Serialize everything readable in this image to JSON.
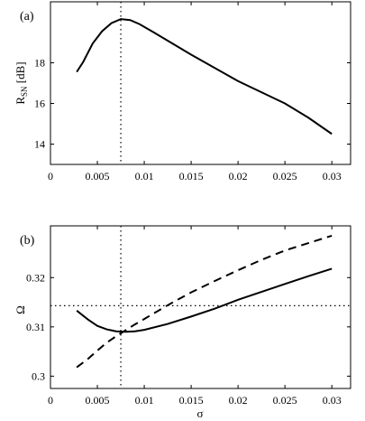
{
  "chart_data": [
    {
      "panel_label": "(a)",
      "type": "line",
      "ylabel": {
        "main": "R",
        "sub": "SN",
        "unit": " [dB]"
      },
      "xlim": [
        0,
        0.032
      ],
      "ylim": [
        13,
        21
      ],
      "xticks": [
        0,
        0.005,
        0.01,
        0.015,
        0.02,
        0.025,
        0.03
      ],
      "xtick_labels": [
        "0",
        "0.005",
        "0.01",
        "0.015",
        "0.02",
        "0.025",
        "0.03"
      ],
      "yticks": [
        14,
        16,
        18
      ],
      "ytick_labels": [
        "14",
        "16",
        "18"
      ],
      "vertical_ref": 0.0075,
      "series": [
        {
          "style": "solid",
          "x": [
            0.0028,
            0.0035,
            0.0045,
            0.0055,
            0.0065,
            0.0075,
            0.0085,
            0.0095,
            0.011,
            0.013,
            0.015,
            0.0175,
            0.02,
            0.0225,
            0.025,
            0.0275,
            0.03
          ],
          "y": [
            17.55,
            18.05,
            18.95,
            19.55,
            19.95,
            20.15,
            20.1,
            19.9,
            19.5,
            18.95,
            18.4,
            17.75,
            17.1,
            16.55,
            16.0,
            15.3,
            14.5
          ]
        }
      ]
    },
    {
      "panel_label": "(b)",
      "type": "line",
      "ylabel": {
        "main": "Ω"
      },
      "xlabel": "σ",
      "xlim": [
        0,
        0.032
      ],
      "ylim": [
        0.2975,
        0.3305
      ],
      "xticks": [
        0,
        0.005,
        0.01,
        0.015,
        0.02,
        0.025,
        0.03
      ],
      "xtick_labels": [
        "0",
        "0.005",
        "0.01",
        "0.015",
        "0.02",
        "0.025",
        "0.03"
      ],
      "yticks": [
        0.3,
        0.31,
        0.32
      ],
      "ytick_labels": [
        "0.3",
        "0.31",
        "0.32"
      ],
      "vertical_ref": 0.0075,
      "horizontal_ref": 0.3143,
      "series": [
        {
          "style": "solid",
          "x": [
            0.0028,
            0.004,
            0.005,
            0.006,
            0.007,
            0.008,
            0.009,
            0.01,
            0.0125,
            0.015,
            0.0175,
            0.02,
            0.0225,
            0.025,
            0.0275,
            0.03
          ],
          "y": [
            0.3133,
            0.3115,
            0.3102,
            0.3095,
            0.3091,
            0.309,
            0.3091,
            0.3094,
            0.3106,
            0.3121,
            0.3137,
            0.3155,
            0.3171,
            0.3187,
            0.3203,
            0.3218
          ]
        },
        {
          "style": "dashed",
          "x": [
            0.0028,
            0.004,
            0.005,
            0.006,
            0.007,
            0.008,
            0.009,
            0.01,
            0.0125,
            0.015,
            0.0175,
            0.02,
            0.0225,
            0.025,
            0.0275,
            0.03
          ],
          "y": [
            0.3018,
            0.3035,
            0.3052,
            0.3068,
            0.3081,
            0.3093,
            0.3105,
            0.3116,
            0.3144,
            0.317,
            0.3193,
            0.3215,
            0.3236,
            0.3255,
            0.327,
            0.3285
          ]
        }
      ]
    }
  ]
}
